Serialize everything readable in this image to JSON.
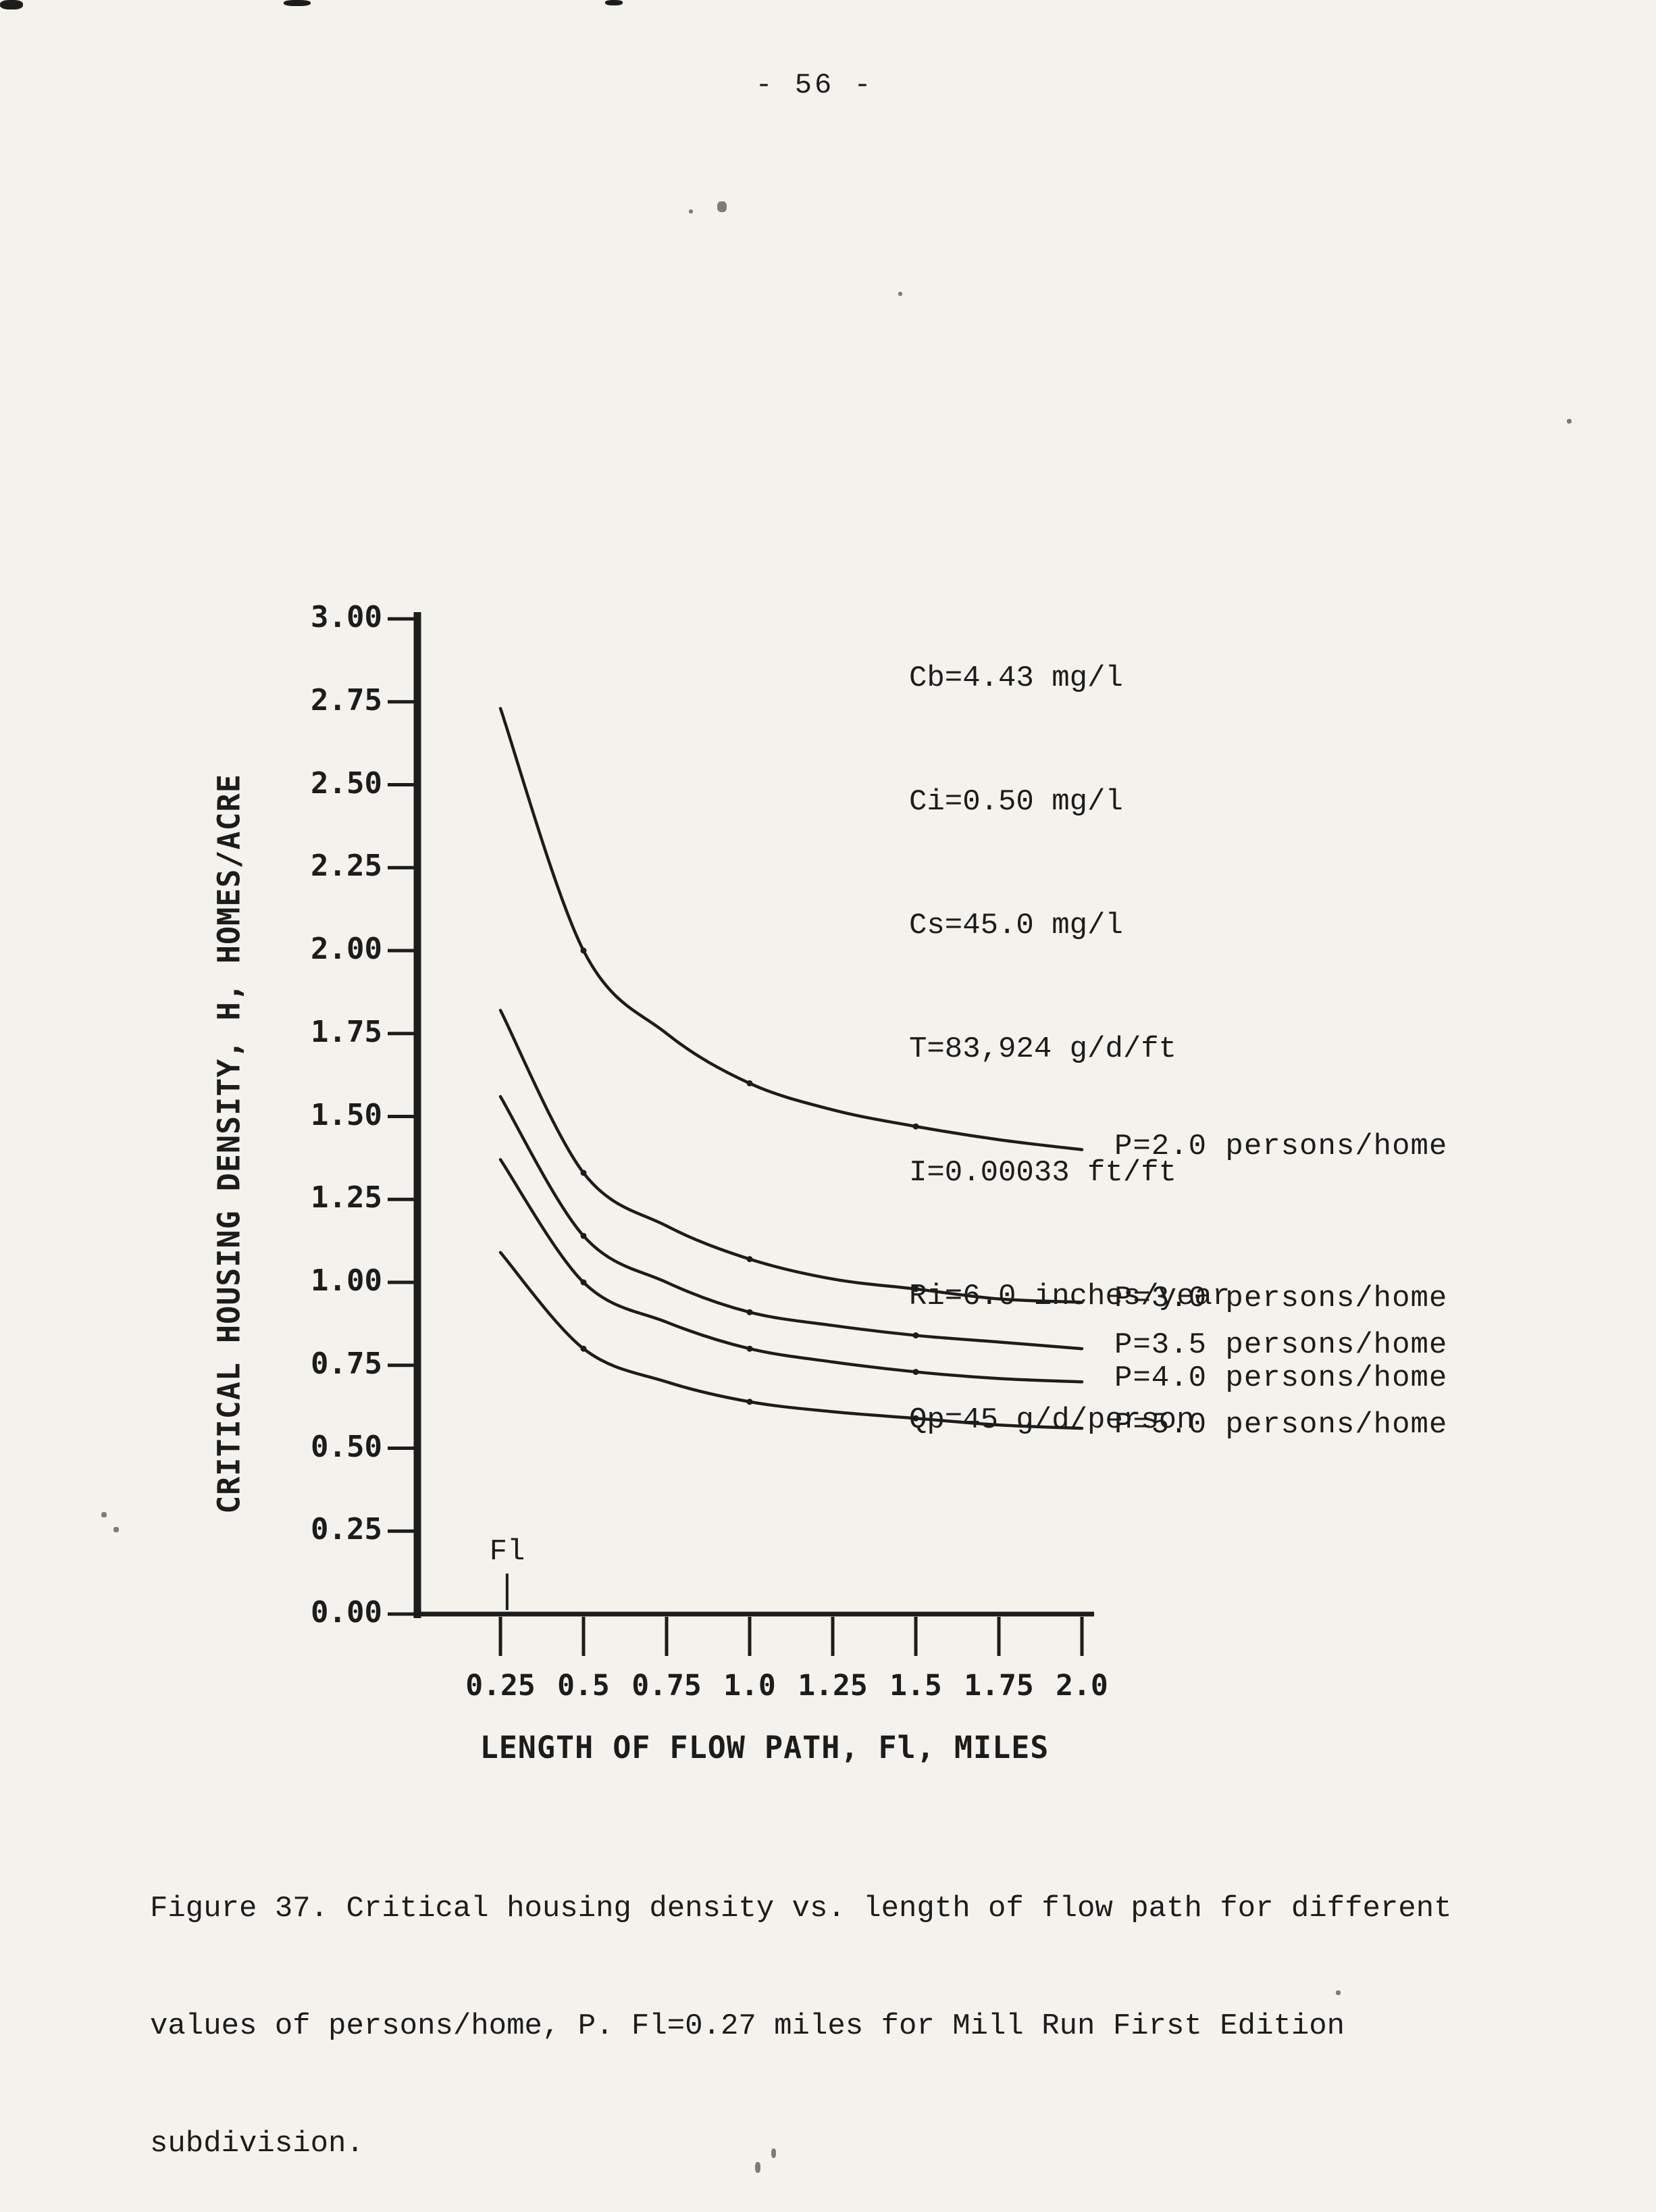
{
  "page": {
    "number": "- 56 -"
  },
  "colors": {
    "ink": "#1c1c1c",
    "paper": "#f4f2ec"
  },
  "chart_data": {
    "type": "line",
    "title": "",
    "xlabel": "LENGTH OF FLOW PATH, Fl, MILES",
    "ylabel": "CRITICAL HOUSING DENSITY, H, HOMES/ACRE",
    "xlim": [
      0,
      2.0
    ],
    "ylim": [
      0,
      3.0
    ],
    "grid": false,
    "legend_position": "right-of-curves",
    "x": [
      0.25,
      0.5,
      0.75,
      1.0,
      1.25,
      1.5,
      1.75,
      2.0
    ],
    "xticks": [
      "0.25",
      "0.5",
      "0.75",
      "1.0",
      "1.25",
      "1.5",
      "1.75",
      "2.0"
    ],
    "yticks": [
      "3.00",
      "2.75",
      "2.50",
      "2.25",
      "2.00",
      "1.75",
      "1.50",
      "1.25",
      "1.00",
      "0.75",
      "0.50",
      "0.25",
      "0.00"
    ],
    "series": [
      {
        "name": "P2.0",
        "label": "P=2.0 persons/home",
        "values": [
          2.73,
          2.0,
          1.75,
          1.6,
          1.52,
          1.47,
          1.43,
          1.4
        ]
      },
      {
        "name": "P3.0",
        "label": "P=3.0 persons/home",
        "values": [
          1.82,
          1.33,
          1.17,
          1.07,
          1.01,
          0.98,
          0.95,
          0.94
        ]
      },
      {
        "name": "P3.5",
        "label": "P=3.5 persons/home",
        "values": [
          1.56,
          1.14,
          1.0,
          0.91,
          0.87,
          0.84,
          0.82,
          0.8
        ]
      },
      {
        "name": "P4.0",
        "label": "P=4.0 persons/home",
        "values": [
          1.37,
          1.0,
          0.88,
          0.8,
          0.76,
          0.73,
          0.71,
          0.7
        ]
      },
      {
        "name": "P5.0",
        "label": "P=5.0 persons/home",
        "values": [
          1.09,
          0.8,
          0.7,
          0.64,
          0.61,
          0.59,
          0.57,
          0.56
        ]
      }
    ],
    "annotations": [
      "Cb=4.43 mg/l",
      "Ci=0.50 mg/l",
      "Cs=45.0 mg/l",
      "T=83,924 g/d/ft",
      "I=0.00033 ft/ft",
      "Ri=6.0 inches/year",
      "Qp=45 g/d/person"
    ],
    "fl_marker": {
      "label": "Fl",
      "x": 0.27
    }
  },
  "caption": {
    "lines": [
      "Figure 37. Critical housing density vs. length of flow path for different",
      "values of persons/home, P. Fl=0.27 miles for Mill Run First Edition",
      "subdivision."
    ]
  }
}
